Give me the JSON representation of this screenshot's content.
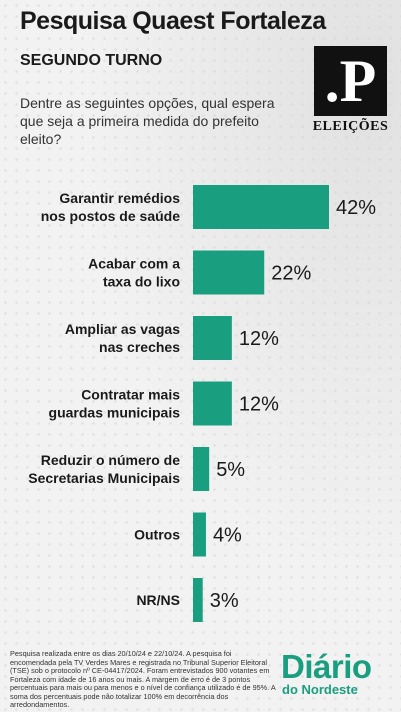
{
  "header": {
    "title": "Pesquisa Quaest Fortaleza",
    "subtitle": "SEGUNDO TURNO",
    "question": "Dentre as seguintes opções, qual espera que seja a primeira medida do prefeito eleito?"
  },
  "logo": {
    "mark": ".P",
    "label": "ELEIÇÕES"
  },
  "chart_data": {
    "type": "bar",
    "orientation": "horizontal",
    "categories": [
      [
        "Garantir remédios",
        "nos postos de saúde"
      ],
      [
        "Acabar com a",
        "taxa do lixo"
      ],
      [
        "Ampliar as vagas",
        "nas creches"
      ],
      [
        "Contratar mais",
        "guardas municipais"
      ],
      [
        "Reduzir o número de",
        "Secretarias Municipais"
      ],
      [
        "Outros"
      ],
      [
        "NR/NS"
      ]
    ],
    "values": [
      42,
      22,
      12,
      12,
      5,
      4,
      3
    ],
    "value_labels": [
      "42%",
      "22%",
      "12%",
      "12%",
      "5%",
      "4%",
      "3%"
    ],
    "unit": "%",
    "bar_color": "#1a9e80",
    "grid": false,
    "legend": "none"
  },
  "footer": {
    "note": "Pesquisa realizada entre os dias 20/10/24 e 22/10/24. A pesquisa foi encomendada pela TV Verdes Mares e registrada no Tribunal Superior Eleitoral (TSE) sob o protocolo nº CE-04417/2024. Foram entrevistados 900 votantes em Fortaleza com idade de 16 anos ou mais. A margem de erro é de 3 pontos percentuais para mais ou para menos e o nível de confiança utilizado é de 95%. A soma dos percentuais pode não totalizar 100% em decorrência dos arredondamentos.",
    "brand_main": "Diário",
    "brand_sub": "do Nordeste"
  }
}
